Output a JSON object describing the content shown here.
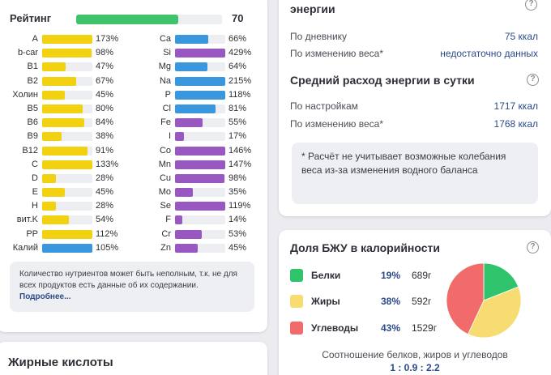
{
  "colors": {
    "yellow": "#f2d111",
    "blue": "#3a97dd",
    "purple": "#9957c2",
    "green": "#3ec26a",
    "protein": "#2fc46b",
    "fat": "#f7dd71",
    "carbs": "#f26b6b"
  },
  "rating": {
    "label": "Рейтинг",
    "value": "70",
    "fraction": 0.7
  },
  "vitamins": [
    {
      "name": "A",
      "value": "173%",
      "fraction": 1.0,
      "color": "yellow"
    },
    {
      "name": "b-car",
      "value": "98%",
      "fraction": 0.98,
      "color": "yellow"
    },
    {
      "name": "B1",
      "value": "47%",
      "fraction": 0.47,
      "color": "yellow"
    },
    {
      "name": "B2",
      "value": "67%",
      "fraction": 0.67,
      "color": "yellow"
    },
    {
      "name": "Холин",
      "value": "45%",
      "fraction": 0.45,
      "color": "yellow"
    },
    {
      "name": "B5",
      "value": "80%",
      "fraction": 0.8,
      "color": "yellow"
    },
    {
      "name": "B6",
      "value": "84%",
      "fraction": 0.84,
      "color": "yellow"
    },
    {
      "name": "B9",
      "value": "38%",
      "fraction": 0.38,
      "color": "yellow"
    },
    {
      "name": "B12",
      "value": "91%",
      "fraction": 0.91,
      "color": "yellow"
    },
    {
      "name": "C",
      "value": "133%",
      "fraction": 1.0,
      "color": "yellow"
    },
    {
      "name": "D",
      "value": "28%",
      "fraction": 0.28,
      "color": "yellow"
    },
    {
      "name": "E",
      "value": "45%",
      "fraction": 0.45,
      "color": "yellow"
    },
    {
      "name": "H",
      "value": "28%",
      "fraction": 0.28,
      "color": "yellow"
    },
    {
      "name": "вит.K",
      "value": "54%",
      "fraction": 0.54,
      "color": "yellow"
    },
    {
      "name": "PP",
      "value": "112%",
      "fraction": 1.0,
      "color": "yellow"
    },
    {
      "name": "Калий",
      "value": "105%",
      "fraction": 1.0,
      "color": "blue"
    }
  ],
  "minerals": [
    {
      "name": "Ca",
      "value": "66%",
      "fraction": 0.66,
      "color": "blue"
    },
    {
      "name": "Si",
      "value": "429%",
      "fraction": 1.0,
      "color": "purple"
    },
    {
      "name": "Mg",
      "value": "64%",
      "fraction": 0.64,
      "color": "blue"
    },
    {
      "name": "Na",
      "value": "215%",
      "fraction": 1.0,
      "color": "blue"
    },
    {
      "name": "P",
      "value": "118%",
      "fraction": 1.0,
      "color": "blue"
    },
    {
      "name": "Cl",
      "value": "81%",
      "fraction": 0.81,
      "color": "blue"
    },
    {
      "name": "Fe",
      "value": "55%",
      "fraction": 0.55,
      "color": "purple"
    },
    {
      "name": "I",
      "value": "17%",
      "fraction": 0.17,
      "color": "purple"
    },
    {
      "name": "Co",
      "value": "146%",
      "fraction": 1.0,
      "color": "purple"
    },
    {
      "name": "Mn",
      "value": "147%",
      "fraction": 1.0,
      "color": "purple"
    },
    {
      "name": "Cu",
      "value": "98%",
      "fraction": 0.98,
      "color": "purple"
    },
    {
      "name": "Mo",
      "value": "35%",
      "fraction": 0.35,
      "color": "purple"
    },
    {
      "name": "Se",
      "value": "119%",
      "fraction": 1.0,
      "color": "purple"
    },
    {
      "name": "F",
      "value": "14%",
      "fraction": 0.14,
      "color": "purple"
    },
    {
      "name": "Cr",
      "value": "53%",
      "fraction": 0.53,
      "color": "purple"
    },
    {
      "name": "Zn",
      "value": "45%",
      "fraction": 0.45,
      "color": "purple"
    }
  ],
  "note": {
    "text": "Количество нутриентов может быть неполным, т.к. не для всех продуктов есть данные об их содержании.",
    "link": "Подробнее..."
  },
  "fatty": {
    "title": "Жирные кислоты"
  },
  "energy": {
    "title_partial": "энергии",
    "rows": [
      {
        "label": "По дневнику",
        "value": "75 ккал"
      },
      {
        "label": "По изменению веса*",
        "value": "недостаточно данных"
      }
    ],
    "avg_title": "Средний расход энергии в сутки",
    "avg_rows": [
      {
        "label": "По настройкам",
        "value": "1717 ккал"
      },
      {
        "label": "По изменению веса*",
        "value": "1768 ккал"
      }
    ],
    "footnote": "* Расчёт не учитывает возможные колебания веса из-за изменения водного баланса"
  },
  "bju": {
    "title": "Доля БЖУ в калорийности",
    "items": [
      {
        "name": "Белки",
        "pct": "19%",
        "grams": "689г",
        "share": 19,
        "color": "protein"
      },
      {
        "name": "Жиры",
        "pct": "38%",
        "grams": "592г",
        "share": 38,
        "color": "fat"
      },
      {
        "name": "Углеводы",
        "pct": "43%",
        "grams": "1529г",
        "share": 43,
        "color": "carbs"
      }
    ],
    "ratio_text": "Соотношение белков, жиров и углеводов",
    "ratio_value": "1 : 0.9 : 2.2"
  },
  "icons": {
    "help": "help-circle-icon",
    "help_glyph": "?"
  }
}
